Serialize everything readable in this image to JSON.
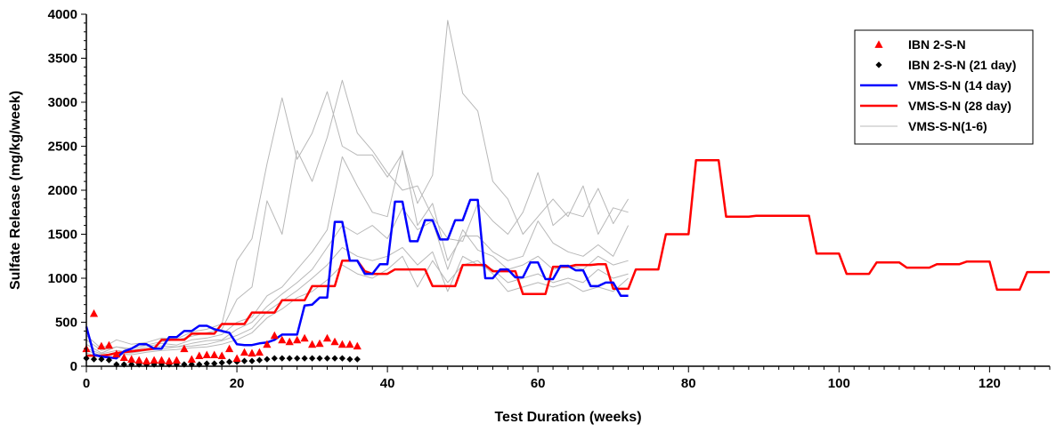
{
  "chart_data": {
    "type": "line",
    "title": "",
    "xlabel": "Test Duration (weeks)",
    "ylabel": "Sulfate Release (mg/kg/week)",
    "xlim": [
      0,
      128
    ],
    "ylim": [
      0,
      4000
    ],
    "xticks": [
      0,
      20,
      40,
      60,
      80,
      100,
      120
    ],
    "yticks": [
      0,
      500,
      1000,
      1500,
      2000,
      2500,
      3000,
      3500,
      4000
    ],
    "grid": false,
    "legend_position": "top-right",
    "series": [
      {
        "name": "IBN 2-S-N",
        "style": "markers",
        "marker": "triangle",
        "color": "#ff0000",
        "x": [
          0,
          1,
          2,
          3,
          4,
          5,
          6,
          7,
          8,
          9,
          10,
          11,
          12,
          13,
          14,
          15,
          16,
          17,
          18,
          19,
          20,
          21,
          22,
          23,
          24,
          25,
          26,
          27,
          28,
          29,
          30,
          31,
          32,
          33,
          34,
          35,
          36
        ],
        "y": [
          200,
          600,
          230,
          240,
          140,
          100,
          80,
          70,
          60,
          70,
          70,
          60,
          70,
          200,
          80,
          120,
          130,
          130,
          120,
          200,
          90,
          160,
          150,
          160,
          250,
          350,
          300,
          280,
          300,
          320,
          250,
          260,
          320,
          280,
          250,
          250,
          230
        ]
      },
      {
        "name": "IBN 2-S-N (21 day)",
        "style": "markers",
        "marker": "diamond",
        "color": "#000000",
        "x": [
          0,
          1,
          2,
          3,
          4,
          5,
          6,
          7,
          8,
          9,
          10,
          11,
          12,
          13,
          14,
          15,
          16,
          17,
          18,
          19,
          20,
          21,
          22,
          23,
          24,
          25,
          26,
          27,
          28,
          29,
          30,
          31,
          32,
          33,
          34,
          35,
          36
        ],
        "y": [
          90,
          80,
          80,
          70,
          20,
          20,
          20,
          20,
          20,
          20,
          20,
          20,
          20,
          20,
          20,
          20,
          30,
          30,
          40,
          50,
          50,
          60,
          60,
          70,
          80,
          90,
          90,
          90,
          90,
          90,
          90,
          90,
          90,
          90,
          90,
          80,
          80
        ]
      },
      {
        "name": "VMS-S-N (14 day)",
        "style": "line",
        "color": "#0000ff",
        "x": [
          0,
          1,
          2,
          3,
          4,
          5,
          6,
          7,
          8,
          9,
          10,
          11,
          12,
          13,
          14,
          15,
          16,
          17,
          18,
          19,
          20,
          21,
          22,
          23,
          24,
          25,
          26,
          27,
          28,
          29,
          30,
          31,
          32,
          33,
          34,
          35,
          36,
          37,
          38,
          39,
          40,
          41,
          42,
          43,
          44,
          45,
          46,
          47,
          48,
          49,
          50,
          51,
          52,
          53,
          54,
          55,
          56,
          57,
          58,
          59,
          60,
          61,
          62,
          63,
          64,
          65,
          66,
          67,
          68,
          69,
          70,
          71,
          72
        ],
        "y": [
          450,
          130,
          110,
          100,
          90,
          170,
          200,
          250,
          250,
          200,
          200,
          330,
          330,
          400,
          400,
          460,
          460,
          420,
          400,
          380,
          250,
          240,
          240,
          260,
          270,
          300,
          360,
          360,
          360,
          690,
          700,
          780,
          780,
          1640,
          1640,
          1200,
          1200,
          1050,
          1050,
          1160,
          1160,
          1870,
          1870,
          1420,
          1420,
          1660,
          1660,
          1440,
          1440,
          1660,
          1660,
          1890,
          1890,
          1000,
          1000,
          1100,
          1100,
          1010,
          1010,
          1180,
          1180,
          990,
          990,
          1140,
          1140,
          1090,
          1090,
          910,
          910,
          950,
          950,
          800,
          800
        ]
      },
      {
        "name": "VMS-S-N (28 day)",
        "style": "line",
        "color": "#ff0000",
        "x": [
          0,
          1,
          2,
          3,
          4,
          5,
          6,
          7,
          8,
          9,
          10,
          11,
          12,
          13,
          14,
          15,
          16,
          17,
          18,
          19,
          20,
          21,
          22,
          23,
          24,
          25,
          26,
          27,
          28,
          29,
          30,
          31,
          32,
          33,
          34,
          35,
          36,
          37,
          38,
          39,
          40,
          41,
          42,
          43,
          44,
          45,
          46,
          47,
          48,
          49,
          50,
          51,
          52,
          53,
          54,
          55,
          56,
          57,
          58,
          59,
          60,
          61,
          62,
          63,
          64,
          65,
          66,
          67,
          68,
          69,
          70,
          71,
          72,
          73,
          74,
          75,
          76,
          77,
          78,
          79,
          80,
          81,
          82,
          83,
          84,
          85,
          86,
          87,
          88,
          89,
          90,
          91,
          92,
          93,
          94,
          95,
          96,
          97,
          98,
          99,
          100,
          101,
          102,
          103,
          104,
          105,
          106,
          107,
          108,
          109,
          110,
          111,
          112,
          113,
          114,
          115,
          116,
          117,
          118,
          119,
          120,
          121,
          122,
          123,
          124,
          125,
          126,
          127,
          128
        ],
        "y": [
          120,
          120,
          120,
          130,
          150,
          160,
          170,
          180,
          190,
          200,
          300,
          300,
          300,
          300,
          370,
          370,
          370,
          370,
          480,
          480,
          480,
          480,
          610,
          610,
          610,
          610,
          750,
          750,
          750,
          750,
          910,
          910,
          910,
          910,
          1200,
          1200,
          1200,
          1080,
          1050,
          1050,
          1050,
          1100,
          1100,
          1100,
          1100,
          1100,
          910,
          910,
          910,
          910,
          1150,
          1150,
          1150,
          1150,
          1080,
          1080,
          1080,
          1080,
          820,
          820,
          820,
          820,
          1130,
          1130,
          1130,
          1150,
          1150,
          1150,
          1160,
          1160,
          880,
          880,
          880,
          1100,
          1100,
          1100,
          1100,
          1500,
          1500,
          1500,
          1500,
          2340,
          2340,
          2340,
          2340,
          1700,
          1700,
          1700,
          1700,
          1710,
          1710,
          1710,
          1710,
          1710,
          1710,
          1710,
          1710,
          1280,
          1280,
          1280,
          1280,
          1050,
          1050,
          1050,
          1050,
          1180,
          1180,
          1180,
          1180,
          1120,
          1120,
          1120,
          1120,
          1160,
          1160,
          1160,
          1160,
          1190,
          1190,
          1190,
          1190,
          870,
          870,
          870,
          870,
          1070,
          1070,
          1070,
          1070
        ]
      },
      {
        "name": "VMS-S-N(1-6)",
        "style": "line",
        "color": "#b8b8b8",
        "lines": [
          {
            "x": [
              0,
              2,
              4,
              6,
              8,
              10,
              12,
              14,
              16,
              18,
              20,
              22,
              24,
              26,
              28,
              30,
              32,
              34,
              36,
              38,
              40,
              42,
              44,
              46,
              48,
              50,
              52,
              54,
              56,
              58,
              60,
              62,
              64,
              66,
              68,
              70,
              72
            ],
            "y": [
              350,
              200,
              300,
              250,
              270,
              320,
              310,
              390,
              420,
              480,
              1200,
              1450,
              2300,
              3050,
              2350,
              2650,
              3120,
              2500,
              2400,
              2400,
              2150,
              2420,
              1850,
              2170,
              3930,
              3100,
              2900,
              2100,
              1900,
              1500,
              1700,
              1900,
              1700,
              2050,
              1500,
              1800,
              1750
            ]
          },
          {
            "x": [
              0,
              2,
              4,
              6,
              8,
              10,
              12,
              14,
              16,
              18,
              20,
              22,
              24,
              26,
              28,
              30,
              32,
              34,
              36,
              38,
              40,
              42,
              44,
              46,
              48,
              50,
              52,
              54,
              56,
              58,
              60,
              62,
              64,
              66,
              68,
              70,
              72
            ],
            "y": [
              300,
              180,
              220,
              200,
              240,
              280,
              300,
              340,
              380,
              420,
              760,
              900,
              1880,
              1500,
              2450,
              2100,
              2600,
              3250,
              2650,
              2450,
              2200,
              2000,
              2050,
              1700,
              1450,
              1420,
              1850,
              1650,
              1500,
              1750,
              2200,
              1600,
              1750,
              1700,
              2020,
              1620,
              1900
            ]
          },
          {
            "x": [
              0,
              2,
              4,
              6,
              8,
              10,
              12,
              14,
              16,
              18,
              20,
              22,
              24,
              26,
              28,
              30,
              32,
              34,
              36,
              38,
              40,
              42,
              44,
              46,
              48,
              50,
              52,
              54,
              56,
              58,
              60,
              62,
              64,
              66,
              68,
              70,
              72
            ],
            "y": [
              250,
              150,
              220,
              180,
              220,
              260,
              240,
              300,
              320,
              360,
              500,
              560,
              800,
              900,
              1100,
              1300,
              1550,
              2380,
              2050,
              1750,
              1700,
              2450,
              1600,
              1850,
              1200,
              1480,
              1480,
              1300,
              1200,
              1250,
              1650,
              1400,
              1300,
              1250,
              1380,
              1250,
              1600
            ]
          },
          {
            "x": [
              0,
              2,
              4,
              6,
              8,
              10,
              12,
              14,
              16,
              18,
              20,
              22,
              24,
              26,
              28,
              30,
              32,
              34,
              36,
              38,
              40,
              42,
              44,
              46,
              48,
              50,
              52,
              54,
              56,
              58,
              60,
              62,
              64,
              66,
              68,
              70,
              72
            ],
            "y": [
              200,
              140,
              180,
              160,
              200,
              230,
              220,
              260,
              290,
              300,
              420,
              500,
              680,
              820,
              950,
              1100,
              1350,
              1600,
              1500,
              1600,
              1450,
              1800,
              1550,
              1650,
              1100,
              1550,
              1320,
              1250,
              1100,
              1150,
              1250,
              1100,
              1150,
              1100,
              1250,
              1150,
              1200
            ]
          },
          {
            "x": [
              0,
              2,
              4,
              6,
              8,
              10,
              12,
              14,
              16,
              18,
              20,
              22,
              24,
              26,
              28,
              30,
              32,
              34,
              36,
              38,
              40,
              42,
              44,
              46,
              48,
              50,
              52,
              54,
              56,
              58,
              60,
              62,
              64,
              66,
              68,
              70,
              72
            ],
            "y": [
              180,
              120,
              160,
              150,
              180,
              200,
              220,
              230,
              250,
              290,
              350,
              430,
              620,
              740,
              860,
              1000,
              1150,
              1350,
              1250,
              1200,
              1250,
              1350,
              1150,
              1300,
              850,
              1250,
              1150,
              1100,
              950,
              1000,
              1050,
              950,
              1000,
              950,
              1100,
              1000,
              1050
            ]
          },
          {
            "x": [
              0,
              2,
              4,
              6,
              8,
              10,
              12,
              14,
              16,
              18,
              20,
              22,
              24,
              26,
              28,
              30,
              32,
              34,
              36,
              38,
              40,
              42,
              44,
              46,
              48,
              50,
              52,
              54,
              56,
              58,
              60,
              62,
              64,
              66,
              68,
              70,
              72
            ],
            "y": [
              150,
              100,
              140,
              130,
              160,
              180,
              190,
              210,
              220,
              250,
              300,
              380,
              550,
              650,
              780,
              850,
              980,
              1150,
              1050,
              1000,
              1100,
              1250,
              900,
              1200,
              950,
              1150,
              1200,
              1050,
              850,
              900,
              950,
              900,
              950,
              850,
              900,
              850,
              1000
            ]
          }
        ]
      }
    ]
  },
  "legend": {
    "items": [
      "IBN 2-S-N",
      "IBN 2-S-N (21 day)",
      "VMS-S-N (14 day)",
      "VMS-S-N (28 day)",
      "VMS-S-N(1-6)"
    ]
  }
}
